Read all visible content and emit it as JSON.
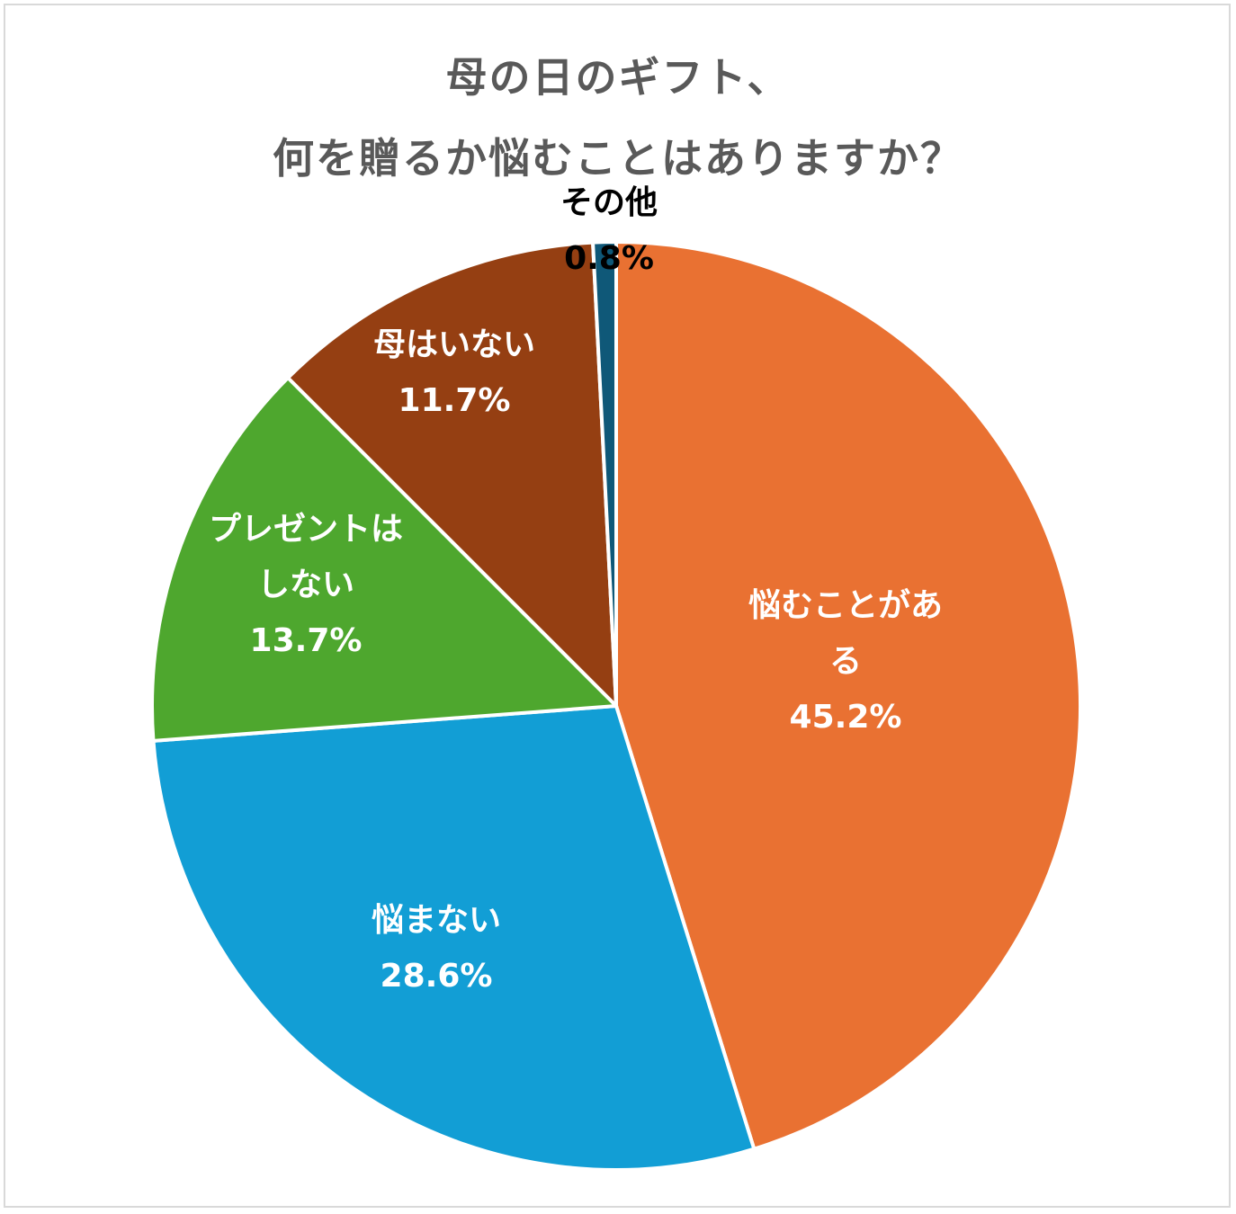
{
  "chart_data": {
    "type": "pie",
    "title_lines": [
      "母の日のギフト、",
      "何を贈るか悩むことはありますか？"
    ],
    "slices": [
      {
        "label_lines": [
          "悩むことがあ",
          "る"
        ],
        "value_text": "45.2%",
        "value": 45.2,
        "color": "#E97132",
        "label_color": "#ffffff"
      },
      {
        "label_lines": [
          "悩まない"
        ],
        "value_text": "28.6%",
        "value": 28.6,
        "color": "#129ED5",
        "label_color": "#ffffff"
      },
      {
        "label_lines": [
          "プレゼントは",
          "しない"
        ],
        "value_text": "13.7%",
        "value": 13.7,
        "color": "#4EA72E",
        "label_color": "#ffffff"
      },
      {
        "label_lines": [
          "母はいない"
        ],
        "value_text": "11.7%",
        "value": 11.7,
        "color": "#953F12",
        "label_color": "#ffffff"
      },
      {
        "label_lines": [
          "その他"
        ],
        "value_text": "0.8%",
        "value": 0.8,
        "color": "#0F5878",
        "label_color": "#000000"
      }
    ],
    "start": "12 o'clock",
    "direction": "clockwise",
    "legend": "none"
  }
}
